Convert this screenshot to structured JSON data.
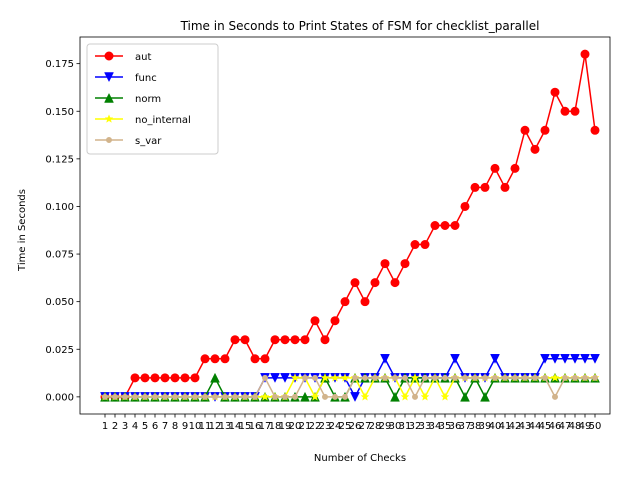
{
  "chart_data": {
    "type": "line",
    "title": "Time in Seconds to Print States of FSM for checklist_parallel",
    "xlabel": "Number of Checks",
    "ylabel": "Time in Seconds",
    "x": [
      1,
      2,
      3,
      4,
      5,
      6,
      7,
      8,
      9,
      10,
      11,
      12,
      13,
      14,
      15,
      16,
      17,
      18,
      19,
      20,
      21,
      22,
      23,
      24,
      25,
      26,
      27,
      28,
      29,
      30,
      31,
      32,
      33,
      34,
      35,
      36,
      37,
      38,
      39,
      40,
      41,
      42,
      43,
      44,
      45,
      46,
      47,
      48,
      49,
      50
    ],
    "x_tick_labels": [
      "1",
      "2",
      "3",
      "4",
      "5",
      "6",
      "7",
      "8",
      "9",
      "10",
      "11",
      "12",
      "13",
      "14",
      "15",
      "16",
      "17",
      "18",
      "19",
      "20",
      "21",
      "22",
      "23",
      "24",
      "25",
      "26",
      "27",
      "28",
      "29",
      "30",
      "31",
      "32",
      "33",
      "34",
      "35",
      "36",
      "37",
      "38",
      "39",
      "40",
      "41",
      "42",
      "43",
      "44",
      "45",
      "46",
      "47",
      "48",
      "49",
      "50"
    ],
    "xlim": [
      -1.5,
      51.5
    ],
    "ylim": [
      -0.009,
      0.189
    ],
    "y_ticks": [
      0.0,
      0.025,
      0.05,
      0.075,
      0.1,
      0.125,
      0.15,
      0.175
    ],
    "y_tick_labels": [
      "0.000",
      "0.025",
      "0.050",
      "0.075",
      "0.100",
      "0.125",
      "0.150",
      "0.175"
    ],
    "grid": false,
    "legend_position": "top-left",
    "series": [
      {
        "name": "aut",
        "color": "#ff0000",
        "marker": "circle",
        "values": [
          0,
          0,
          0,
          0.01,
          0.01,
          0.01,
          0.01,
          0.01,
          0.01,
          0.01,
          0.02,
          0.02,
          0.02,
          0.03,
          0.03,
          0.02,
          0.02,
          0.03,
          0.03,
          0.03,
          0.03,
          0.04,
          0.03,
          0.04,
          0.05,
          0.06,
          0.05,
          0.06,
          0.07,
          0.06,
          0.07,
          0.08,
          0.08,
          0.09,
          0.09,
          0.09,
          0.1,
          0.11,
          0.11,
          0.12,
          0.11,
          0.12,
          0.14,
          0.13,
          0.14,
          0.16,
          0.15,
          0.15,
          0.18,
          0.14
        ]
      },
      {
        "name": "func",
        "color": "#0000ff",
        "marker": "triangle-down",
        "values": [
          0,
          0,
          0,
          0,
          0,
          0,
          0,
          0,
          0,
          0,
          0,
          0,
          0,
          0,
          0,
          0,
          0.01,
          0.01,
          0.01,
          0.01,
          0.01,
          0.01,
          0.01,
          0.01,
          0.01,
          0,
          0.01,
          0.01,
          0.02,
          0.01,
          0.01,
          0.01,
          0.01,
          0.01,
          0.01,
          0.02,
          0.01,
          0.01,
          0.01,
          0.02,
          0.01,
          0.01,
          0.01,
          0.01,
          0.02,
          0.02,
          0.02,
          0.02,
          0.02,
          0.02
        ]
      },
      {
        "name": "norm",
        "color": "#008000",
        "marker": "triangle-up",
        "values": [
          0,
          0,
          0,
          0,
          0,
          0,
          0,
          0,
          0,
          0,
          0,
          0.01,
          0,
          0,
          0,
          0,
          0,
          0,
          0,
          0,
          0,
          0,
          0.01,
          0,
          0,
          0.01,
          0.01,
          0.01,
          0.01,
          0,
          0.01,
          0.01,
          0.01,
          0.01,
          0.01,
          0.01,
          0,
          0.01,
          0,
          0.01,
          0.01,
          0.01,
          0.01,
          0.01,
          0.01,
          0.01,
          0.01,
          0.01,
          0.01,
          0.01
        ]
      },
      {
        "name": "no_internal",
        "color": "#ffff00",
        "marker": "star",
        "values": [
          0,
          0,
          0,
          0,
          0,
          0,
          0,
          0,
          0,
          0,
          0,
          0,
          0,
          0,
          0,
          0,
          0,
          0,
          0,
          0.01,
          0.01,
          0,
          0.01,
          0.01,
          0.01,
          0.01,
          0,
          0.01,
          0.01,
          0.01,
          0,
          0.01,
          0,
          0.01,
          0,
          0.01,
          0.01,
          0.01,
          0.01,
          0.01,
          0.01,
          0.01,
          0.01,
          0.01,
          0.01,
          0.01,
          0.01,
          0.01,
          0.01,
          0.01
        ]
      },
      {
        "name": "s_var",
        "color": "#d2b48c",
        "marker": "small-circle",
        "values": [
          0,
          0,
          0,
          0,
          0,
          0,
          0,
          0,
          0,
          0,
          0,
          0,
          0,
          0,
          0,
          0,
          0.01,
          0,
          0,
          0,
          0.01,
          0.01,
          0,
          0,
          0,
          0.01,
          0.01,
          0.01,
          0.01,
          0.01,
          0.01,
          0,
          0.01,
          0.01,
          0.01,
          0.01,
          0.01,
          0.01,
          0.01,
          0.01,
          0.01,
          0.01,
          0.01,
          0.01,
          0.01,
          0,
          0.01,
          0.01,
          0.01,
          0.01
        ]
      }
    ]
  }
}
